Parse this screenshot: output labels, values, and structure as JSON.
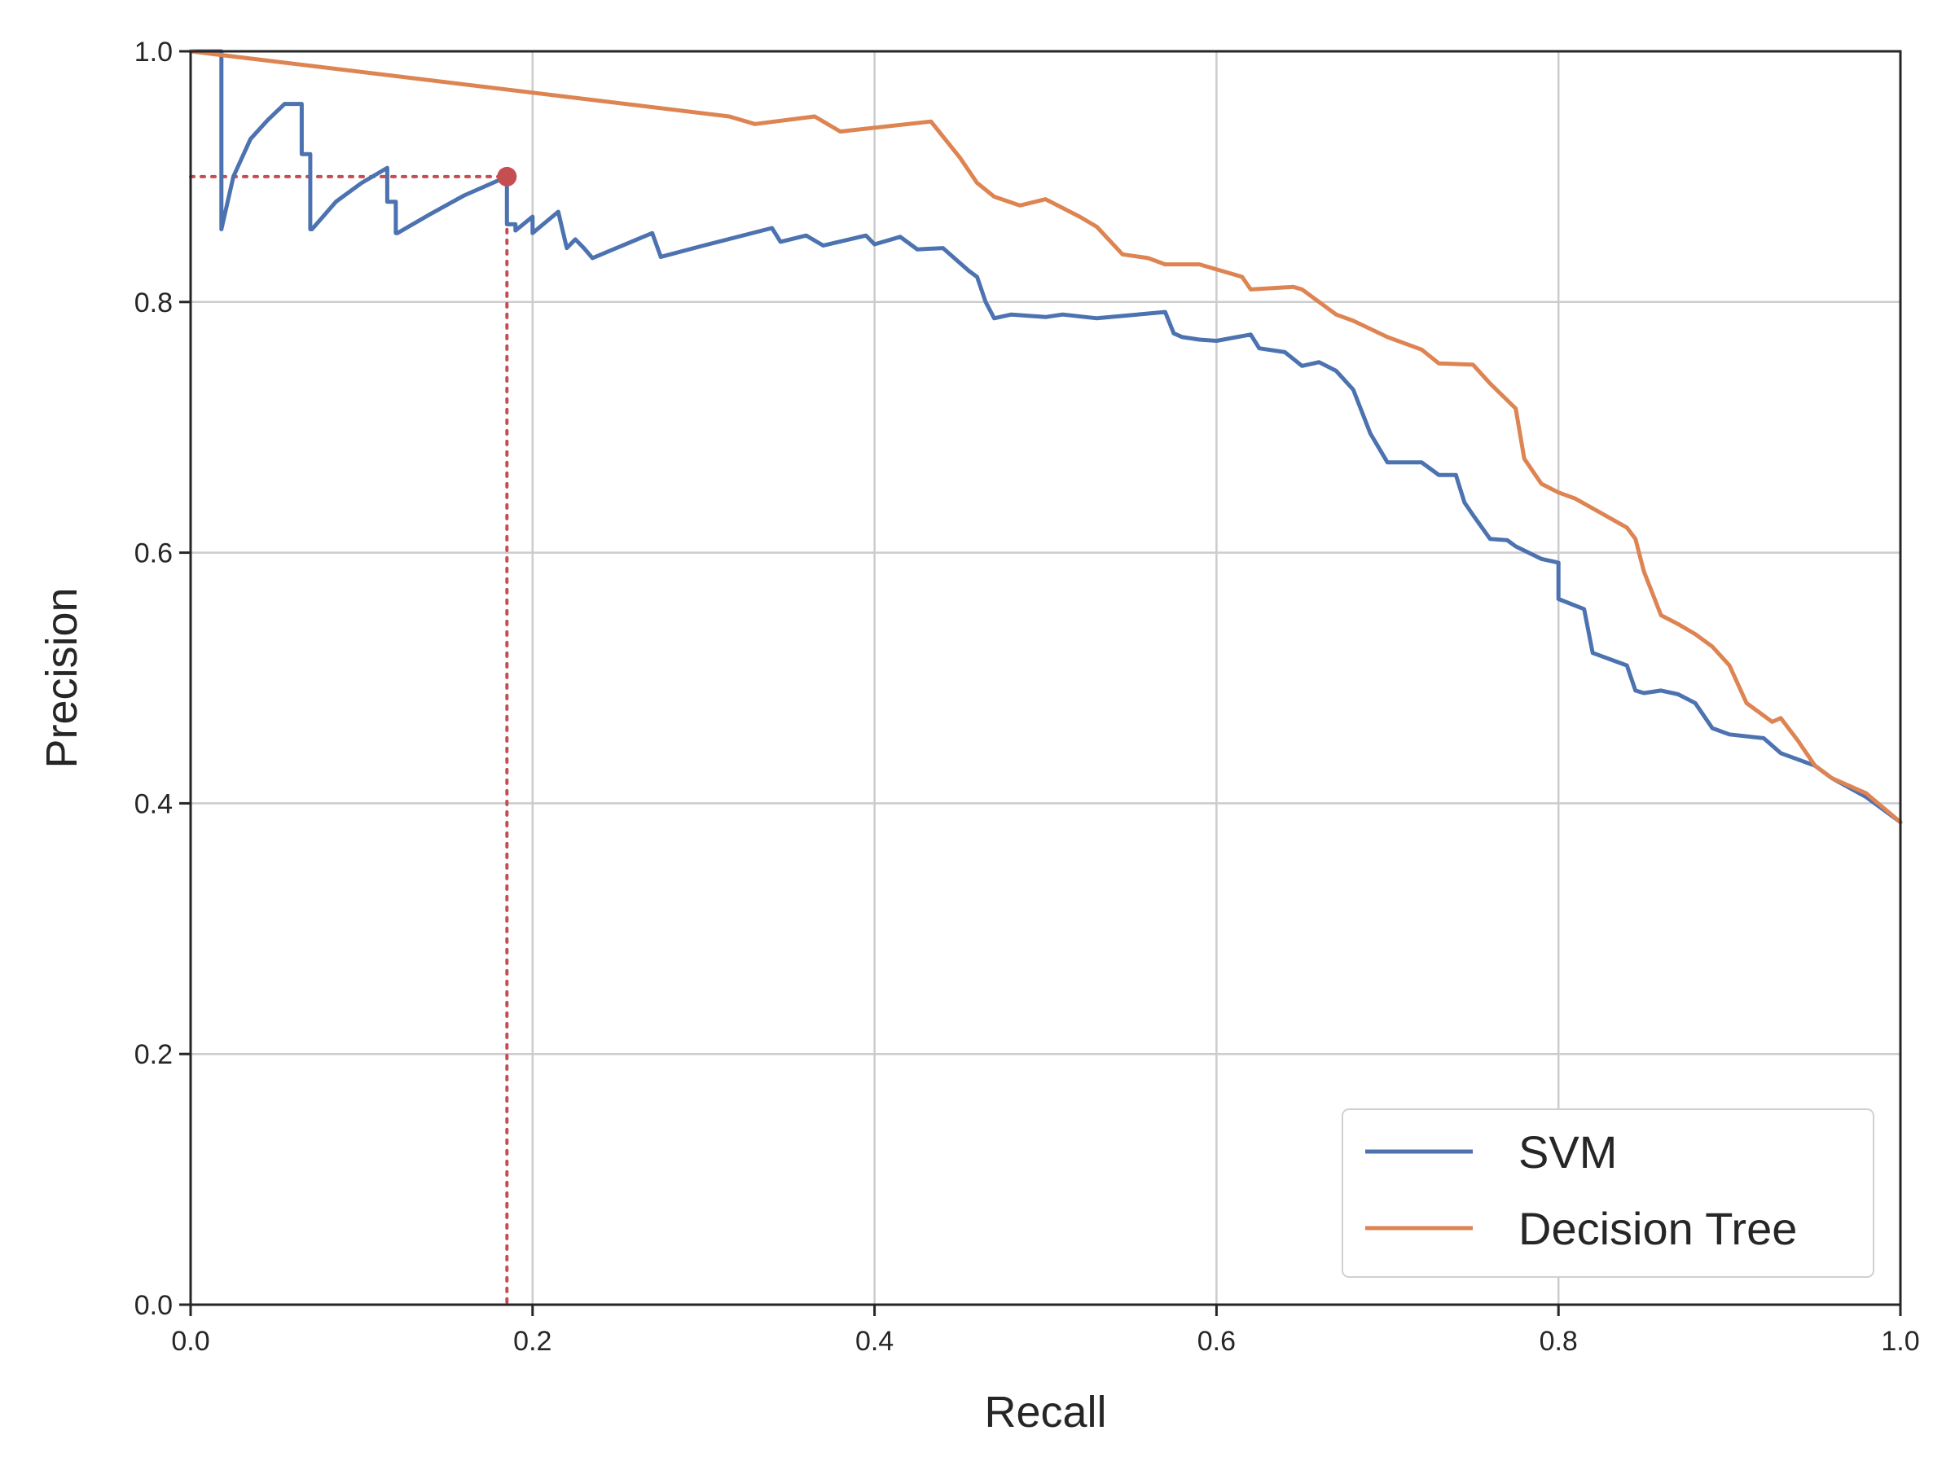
{
  "chart_data": {
    "type": "line",
    "title": "",
    "xlabel": "Recall",
    "ylabel": "Precision",
    "xlim": [
      0.0,
      1.0
    ],
    "ylim": [
      0.0,
      1.0
    ],
    "xticks": [
      "0.0",
      "0.2",
      "0.4",
      "0.6",
      "0.8",
      "1.0"
    ],
    "yticks": [
      "0.0",
      "0.2",
      "0.4",
      "0.6",
      "0.8",
      "1.0"
    ],
    "grid": true,
    "legend_position": "lower-right",
    "series": [
      {
        "name": "SVM",
        "color": "#4c72b0",
        "x": [
          0.0,
          0.018,
          0.018,
          0.018,
          0.025,
          0.035,
          0.045,
          0.055,
          0.065,
          0.065,
          0.07,
          0.07,
          0.071,
          0.085,
          0.1,
          0.115,
          0.115,
          0.12,
          0.12,
          0.121,
          0.14,
          0.16,
          0.185,
          0.185,
          0.19,
          0.19,
          0.2,
          0.2,
          0.215,
          0.22,
          0.225,
          0.23,
          0.235,
          0.27,
          0.275,
          0.3,
          0.34,
          0.345,
          0.36,
          0.37,
          0.395,
          0.4,
          0.415,
          0.425,
          0.44,
          0.455,
          0.46,
          0.465,
          0.47,
          0.48,
          0.5,
          0.51,
          0.53,
          0.57,
          0.575,
          0.58,
          0.59,
          0.6,
          0.62,
          0.625,
          0.64,
          0.65,
          0.66,
          0.67,
          0.68,
          0.69,
          0.7,
          0.72,
          0.73,
          0.74,
          0.745,
          0.75,
          0.76,
          0.77,
          0.775,
          0.79,
          0.8,
          0.8,
          0.815,
          0.82,
          0.84,
          0.845,
          0.85,
          0.86,
          0.87,
          0.88,
          0.89,
          0.9,
          0.92,
          0.93,
          0.95,
          0.96,
          0.98,
          0.99,
          1.0
        ],
        "y": [
          1.0,
          1.0,
          0.858,
          0.858,
          0.9,
          0.93,
          0.945,
          0.958,
          0.958,
          0.918,
          0.918,
          0.858,
          0.858,
          0.88,
          0.895,
          0.907,
          0.88,
          0.88,
          0.855,
          0.855,
          0.87,
          0.885,
          0.9,
          0.862,
          0.862,
          0.857,
          0.868,
          0.855,
          0.872,
          0.843,
          0.85,
          0.843,
          0.835,
          0.855,
          0.836,
          0.845,
          0.859,
          0.848,
          0.853,
          0.845,
          0.853,
          0.846,
          0.852,
          0.842,
          0.843,
          0.825,
          0.82,
          0.8,
          0.787,
          0.79,
          0.788,
          0.79,
          0.787,
          0.792,
          0.775,
          0.772,
          0.77,
          0.769,
          0.774,
          0.763,
          0.76,
          0.749,
          0.752,
          0.745,
          0.73,
          0.695,
          0.672,
          0.672,
          0.662,
          0.662,
          0.64,
          0.63,
          0.611,
          0.61,
          0.605,
          0.595,
          0.592,
          0.563,
          0.555,
          0.52,
          0.51,
          0.49,
          0.488,
          0.49,
          0.487,
          0.48,
          0.46,
          0.455,
          0.452,
          0.44,
          0.43,
          0.42,
          0.405,
          0.395,
          0.385
        ]
      },
      {
        "name": "Decision Tree",
        "color": "#dd8452",
        "x": [
          0.0,
          0.315,
          0.33,
          0.365,
          0.38,
          0.433,
          0.45,
          0.46,
          0.47,
          0.485,
          0.5,
          0.52,
          0.53,
          0.545,
          0.56,
          0.57,
          0.59,
          0.615,
          0.62,
          0.645,
          0.65,
          0.67,
          0.68,
          0.7,
          0.72,
          0.73,
          0.75,
          0.76,
          0.775,
          0.78,
          0.79,
          0.8,
          0.81,
          0.84,
          0.845,
          0.85,
          0.86,
          0.87,
          0.88,
          0.89,
          0.9,
          0.91,
          0.92,
          0.925,
          0.93,
          0.94,
          0.95,
          0.96,
          0.98,
          1.0
        ],
        "y": [
          1.0,
          0.948,
          0.942,
          0.948,
          0.936,
          0.944,
          0.915,
          0.895,
          0.884,
          0.877,
          0.882,
          0.868,
          0.86,
          0.838,
          0.835,
          0.83,
          0.83,
          0.82,
          0.81,
          0.812,
          0.81,
          0.79,
          0.785,
          0.772,
          0.762,
          0.751,
          0.75,
          0.735,
          0.715,
          0.675,
          0.655,
          0.648,
          0.643,
          0.62,
          0.611,
          0.585,
          0.55,
          0.543,
          0.535,
          0.525,
          0.51,
          0.48,
          0.47,
          0.465,
          0.468,
          0.45,
          0.43,
          0.42,
          0.408,
          0.385
        ]
      }
    ],
    "annotation": {
      "marker_x": 0.185,
      "marker_y": 0.9,
      "color": "#c44e52",
      "style": "dotted"
    }
  }
}
